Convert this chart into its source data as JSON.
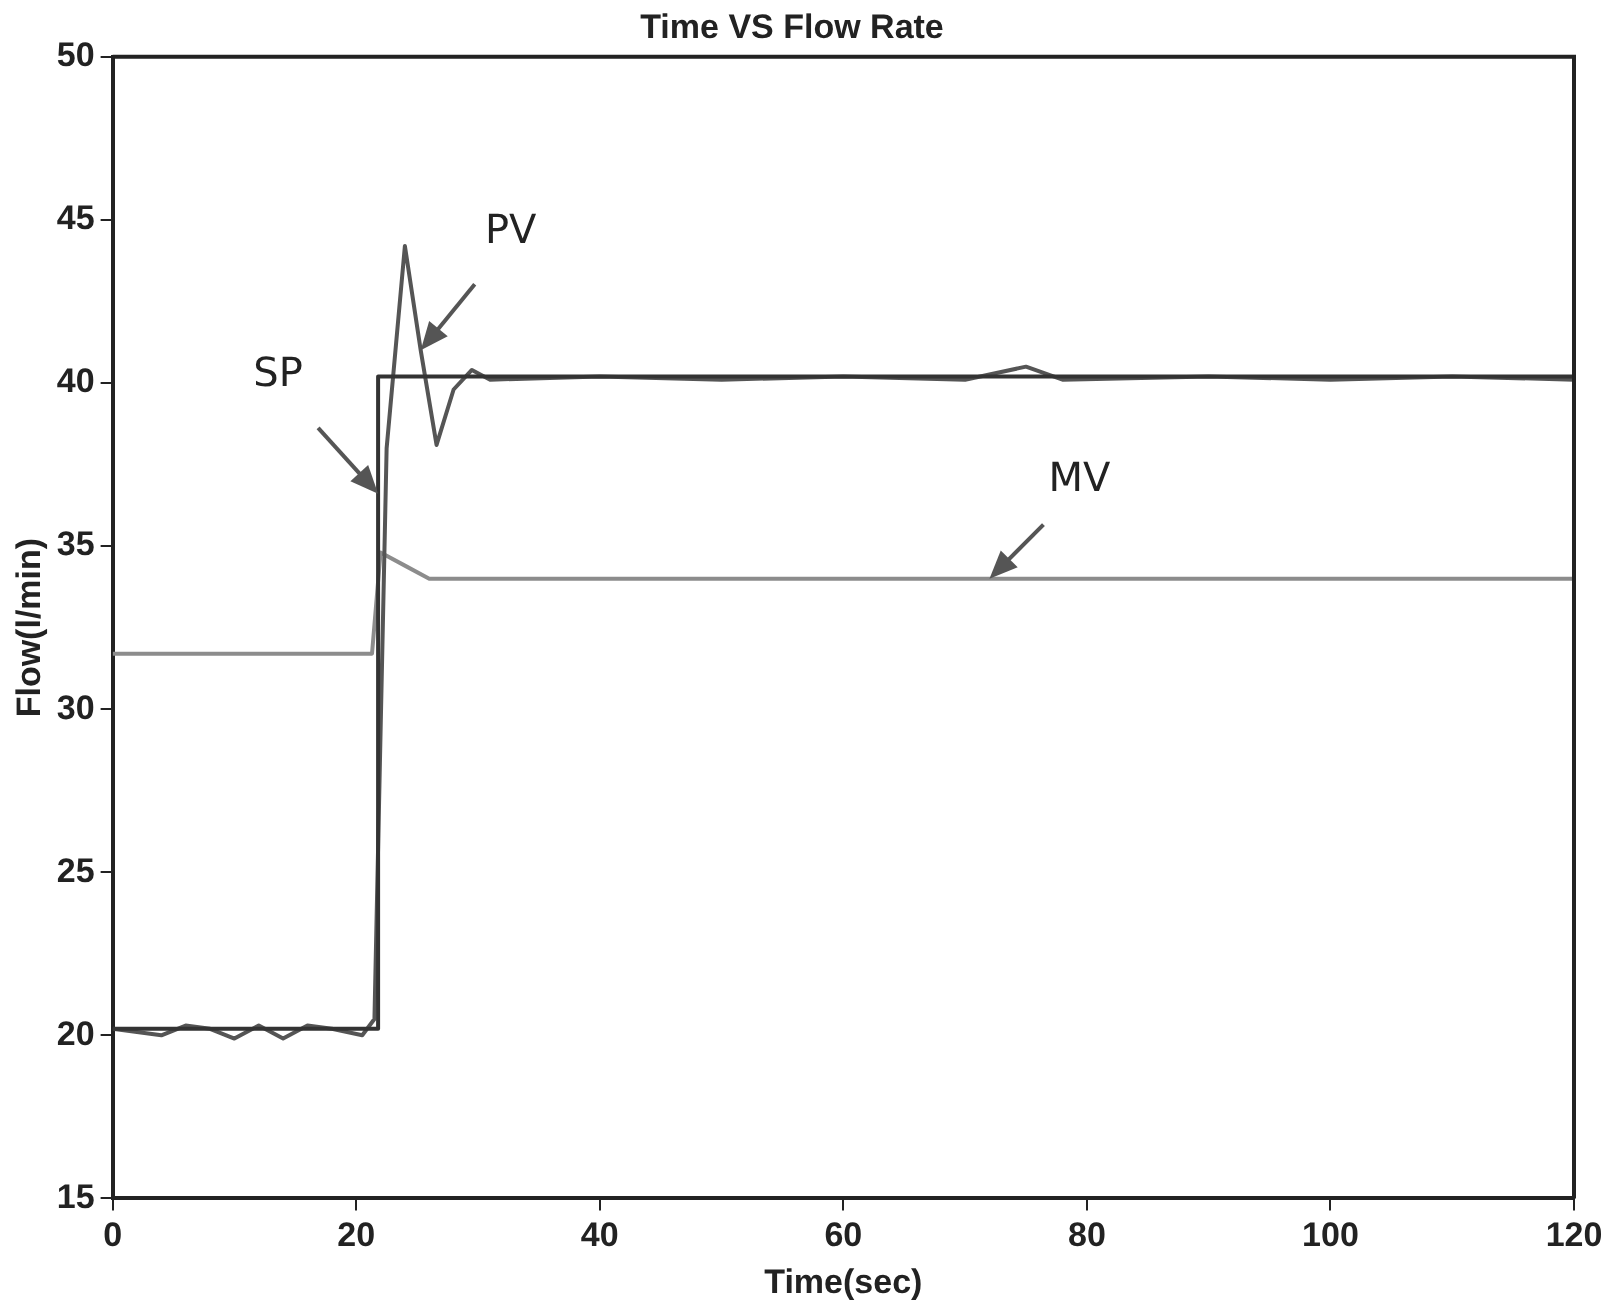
{
  "chart_data": {
    "type": "line",
    "title": "Time VS Flow Rate",
    "xlabel": "Time(sec)",
    "ylabel": "Flow(l/min)",
    "xlim": [
      0,
      120
    ],
    "xticks": [
      0,
      20,
      40,
      60,
      80,
      100,
      120
    ],
    "ylim": [
      15,
      50
    ],
    "yticks": [
      15,
      20,
      25,
      30,
      35,
      40,
      45,
      50
    ],
    "grid": false,
    "legend": false,
    "marker": "none",
    "line_style": "solid",
    "series": [
      {
        "color": "#333333",
        "x": [
          0,
          21.8,
          21.8,
          120
        ],
        "values": [
          20.2,
          20.2,
          40.2,
          40.2
        ]
      },
      {
        "color": "#555555",
        "x": [
          0,
          4,
          6,
          8,
          10,
          12,
          14,
          16,
          18,
          20.5,
          21.5,
          22.5,
          24,
          25.3,
          26.6,
          28,
          29.5,
          31,
          40,
          50,
          60,
          70,
          75,
          78,
          90,
          100,
          110,
          120
        ],
        "values": [
          20.2,
          20.0,
          20.3,
          20.2,
          19.9,
          20.3,
          19.9,
          20.3,
          20.2,
          20.0,
          20.5,
          38,
          44.2,
          41,
          38.1,
          39.8,
          40.4,
          40.1,
          40.2,
          40.1,
          40.2,
          40.1,
          40.5,
          40.1,
          40.2,
          40.1,
          40.2,
          40.1
        ]
      },
      {
        "color": "#8c8c8c",
        "x": [
          0,
          21.3,
          22,
          24,
          26,
          120
        ],
        "values": [
          31.7,
          31.7,
          34.8,
          34.4,
          34.0,
          34.0
        ]
      }
    ],
    "annotations": [
      {
        "text": "SP",
        "x": 21.8,
        "y": 36.6
      },
      {
        "text": "PV",
        "x": 25.3,
        "y": 41
      },
      {
        "text": "MV",
        "x": 72,
        "y": 34
      }
    ]
  }
}
